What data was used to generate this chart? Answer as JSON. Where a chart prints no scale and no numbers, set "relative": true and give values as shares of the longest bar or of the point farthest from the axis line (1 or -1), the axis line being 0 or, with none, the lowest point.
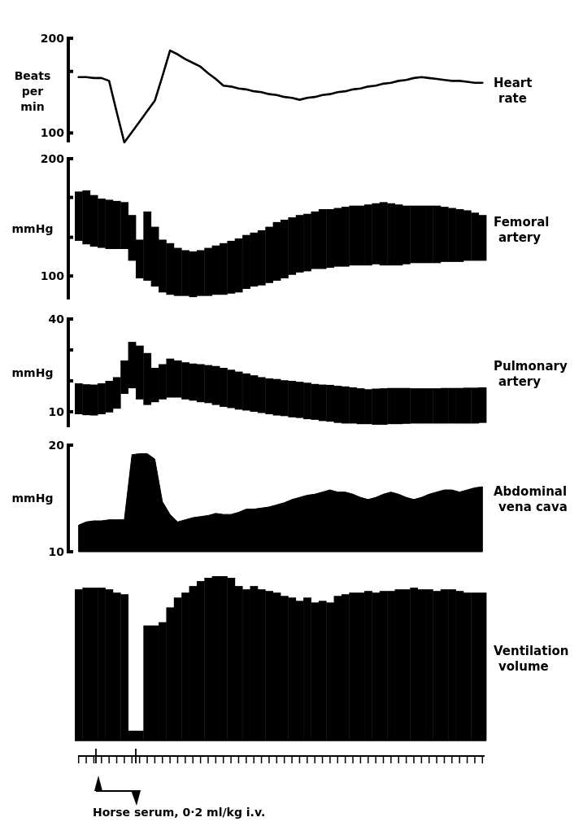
{
  "chart_data": [
    {
      "type": "line",
      "ylabel": "Beats per min",
      "ylim": [
        90,
        200
      ],
      "yticks": [
        100,
        {
          "value": 165,
          "label": null
        },
        200
      ],
      "tick_labels": "y",
      "categories": [
        null,
        null,
        null,
        null,
        null,
        null,
        null,
        null,
        null,
        null,
        null,
        null,
        null,
        null,
        null,
        null,
        null,
        null,
        null,
        null,
        null,
        null,
        null,
        null,
        null,
        null,
        null,
        null,
        null,
        null,
        null,
        null,
        null,
        null,
        null,
        null,
        null,
        null,
        null,
        null,
        null,
        null,
        null,
        null,
        null,
        null,
        null,
        null,
        null,
        null,
        null,
        null,
        null,
        null
      ],
      "series": [
        {
          "name": "Heart rate",
          "color": "#000000",
          "values": [
            159,
            159,
            158,
            158,
            155,
            122,
            90,
            101,
            112,
            123,
            134,
            160,
            187,
            183,
            178,
            174,
            170,
            163,
            157,
            150,
            149,
            147,
            146,
            144,
            143,
            141,
            140,
            138,
            137,
            135,
            137,
            138,
            140,
            141,
            143,
            144,
            146,
            147,
            149,
            150,
            152,
            153,
            155,
            156,
            158,
            159,
            158,
            157,
            156,
            155,
            155,
            154,
            153,
            153
          ]
        }
      ]
    },
    {
      "type": "bar",
      "ylabel": "mmHg",
      "ylim": [
        80,
        200
      ],
      "yticks": [
        100,
        {
          "value": 133,
          "label": null
        },
        {
          "value": 167,
          "label": null
        },
        200
      ],
      "tick_labels": "y",
      "categories": [
        null,
        null,
        null,
        null,
        null,
        null,
        null,
        null,
        null,
        null,
        null,
        null,
        null,
        null,
        null,
        null,
        null,
        null,
        null,
        null,
        null,
        null,
        null,
        null,
        null,
        null,
        null,
        null,
        null,
        null,
        null,
        null,
        null,
        null,
        null,
        null,
        null,
        null,
        null,
        null,
        null,
        null,
        null,
        null,
        null,
        null,
        null,
        null,
        null,
        null,
        null,
        null,
        null,
        null
      ],
      "series": [
        {
          "name": "Femoral artery",
          "color": "#000000",
          "base": [
            130,
            127,
            125,
            124,
            123,
            123,
            123,
            113,
            98,
            96,
            91,
            86,
            84,
            83,
            83,
            82,
            83,
            83,
            84,
            84,
            85,
            86,
            89,
            91,
            92,
            94,
            96,
            98,
            101,
            103,
            104,
            106,
            106,
            107,
            108,
            108,
            109,
            109,
            109,
            110,
            109,
            109,
            109,
            110,
            111,
            111,
            111,
            111,
            112,
            112,
            112,
            113,
            113,
            113
          ],
          "values": [
            42,
            46,
            44,
            42,
            42,
            41,
            40,
            39,
            33,
            59,
            51,
            45,
            44,
            41,
            39,
            39,
            39,
            41,
            42,
            44,
            45,
            46,
            46,
            46,
            47,
            48,
            50,
            50,
            49,
            49,
            49,
            49,
            51,
            50,
            50,
            51,
            51,
            51,
            52,
            52,
            54,
            53,
            52,
            50,
            49,
            49,
            49,
            49,
            47,
            46,
            45,
            43,
            41,
            39
          ]
        }
      ]
    },
    {
      "type": "bar",
      "ylabel": "mmHg",
      "ylim": [
        5,
        40
      ],
      "yticks": [
        10,
        {
          "value": 20,
          "label": null
        },
        {
          "value": 30,
          "label": null
        },
        40
      ],
      "tick_labels": "y",
      "categories": [
        null,
        null,
        null,
        null,
        null,
        null,
        null,
        null,
        null,
        null,
        null,
        null,
        null,
        null,
        null,
        null,
        null,
        null,
        null,
        null,
        null,
        null,
        null,
        null,
        null,
        null,
        null,
        null,
        null,
        null,
        null,
        null,
        null,
        null,
        null,
        null,
        null,
        null,
        null,
        null,
        null,
        null,
        null,
        null,
        null,
        null,
        null,
        null,
        null,
        null,
        null,
        null,
        null,
        null
      ],
      "series": [
        {
          "name": "Pulmonary artery",
          "color": "#000000",
          "base": [
            9.2,
            8.9,
            8.8,
            9.2,
            9.8,
            11,
            15.8,
            17.6,
            14,
            12.2,
            13.1,
            14,
            14.6,
            14.6,
            14,
            13.6,
            13.1,
            12.8,
            12.2,
            11.6,
            11.2,
            10.7,
            10.4,
            10,
            9.6,
            9.2,
            8.8,
            8.6,
            8.2,
            8,
            7.6,
            7.4,
            7,
            6.8,
            6.4,
            6.2,
            6.2,
            6,
            6,
            5.8,
            5.8,
            6,
            6,
            6.1,
            6.2,
            6.2,
            6.2,
            6.2,
            6.2,
            6.2,
            6.2,
            6.2,
            6.2,
            6.4
          ],
          "values": [
            10,
            10,
            10,
            10,
            10.2,
            10.2,
            10.8,
            15,
            17.4,
            16.8,
            11.1,
            11.4,
            12.6,
            12,
            12,
            12,
            12.3,
            12.3,
            12.6,
            12.6,
            12.4,
            12.3,
            12,
            11.8,
            11.6,
            11.6,
            11.8,
            11.6,
            11.8,
            11.7,
            11.8,
            11.6,
            11.8,
            11.9,
            12,
            12,
            11.7,
            11.6,
            11.3,
            11.7,
            11.8,
            11.7,
            11.7,
            11.6,
            11.4,
            11.4,
            11.4,
            11.4,
            11.5,
            11.5,
            11.5,
            11.6,
            11.6,
            11.5
          ]
        }
      ]
    },
    {
      "type": "area",
      "ylabel": "mmHg",
      "ylim": [
        10,
        20
      ],
      "yticks": [
        10,
        20
      ],
      "tick_labels": "y",
      "categories": [
        null,
        null,
        null,
        null,
        null,
        null,
        null,
        null,
        null,
        null,
        null,
        null,
        null,
        null,
        null,
        null,
        null,
        null,
        null,
        null,
        null,
        null,
        null,
        null,
        null,
        null,
        null,
        null,
        null,
        null,
        null,
        null,
        null,
        null,
        null,
        null,
        null,
        null,
        null,
        null,
        null,
        null,
        null,
        null,
        null,
        null,
        null,
        null,
        null,
        null,
        null,
        null,
        null,
        null
      ],
      "series": [
        {
          "name": "Abdominal vena cava",
          "color": "#000000",
          "values": [
            12.5,
            12.8,
            12.9,
            12.9,
            13,
            13,
            13,
            19.1,
            19.2,
            19.2,
            18.7,
            14.7,
            13.5,
            12.8,
            13,
            13.2,
            13.3,
            13.4,
            13.6,
            13.5,
            13.5,
            13.7,
            14,
            14,
            14.1,
            14.2,
            14.4,
            14.6,
            14.9,
            15.1,
            15.3,
            15.4,
            15.6,
            15.8,
            15.6,
            15.6,
            15.4,
            15.1,
            14.9,
            15.1,
            15.4,
            15.6,
            15.4,
            15.1,
            14.9,
            15.1,
            15.4,
            15.6,
            15.8,
            15.8,
            15.6,
            15.8,
            16,
            16.1
          ]
        }
      ]
    },
    {
      "type": "bar",
      "relative": true,
      "tick_labels": false,
      "categories": [
        null,
        null,
        null,
        null,
        null,
        null,
        null,
        null,
        null,
        null,
        null,
        null,
        null,
        null,
        null,
        null,
        null,
        null,
        null,
        null,
        null,
        null,
        null,
        null,
        null,
        null,
        null,
        null,
        null,
        null,
        null,
        null,
        null,
        null,
        null,
        null,
        null,
        null,
        null,
        null,
        null,
        null,
        null,
        null,
        null,
        null,
        null,
        null,
        null,
        null,
        null,
        null,
        null,
        null
      ],
      "series": [
        {
          "name": "Ventilation volume",
          "color": "#000000",
          "values": [
            0.92,
            0.93,
            0.93,
            0.93,
            0.92,
            0.9,
            0.89,
            0.06,
            0.06,
            0.7,
            0.7,
            0.72,
            0.81,
            0.87,
            0.9,
            0.94,
            0.97,
            0.99,
            1,
            1,
            0.99,
            0.94,
            0.92,
            0.94,
            0.92,
            0.91,
            0.9,
            0.88,
            0.87,
            0.85,
            0.87,
            0.84,
            0.85,
            0.84,
            0.88,
            0.89,
            0.9,
            0.9,
            0.91,
            0.9,
            0.91,
            0.91,
            0.92,
            0.92,
            0.93,
            0.92,
            0.92,
            0.91,
            0.92,
            0.92,
            0.91,
            0.9,
            0.9,
            0.9
          ]
        }
      ],
      "annotations": [
        "Horse serum, 0·2 ml/kg i.v."
      ]
    }
  ]
}
